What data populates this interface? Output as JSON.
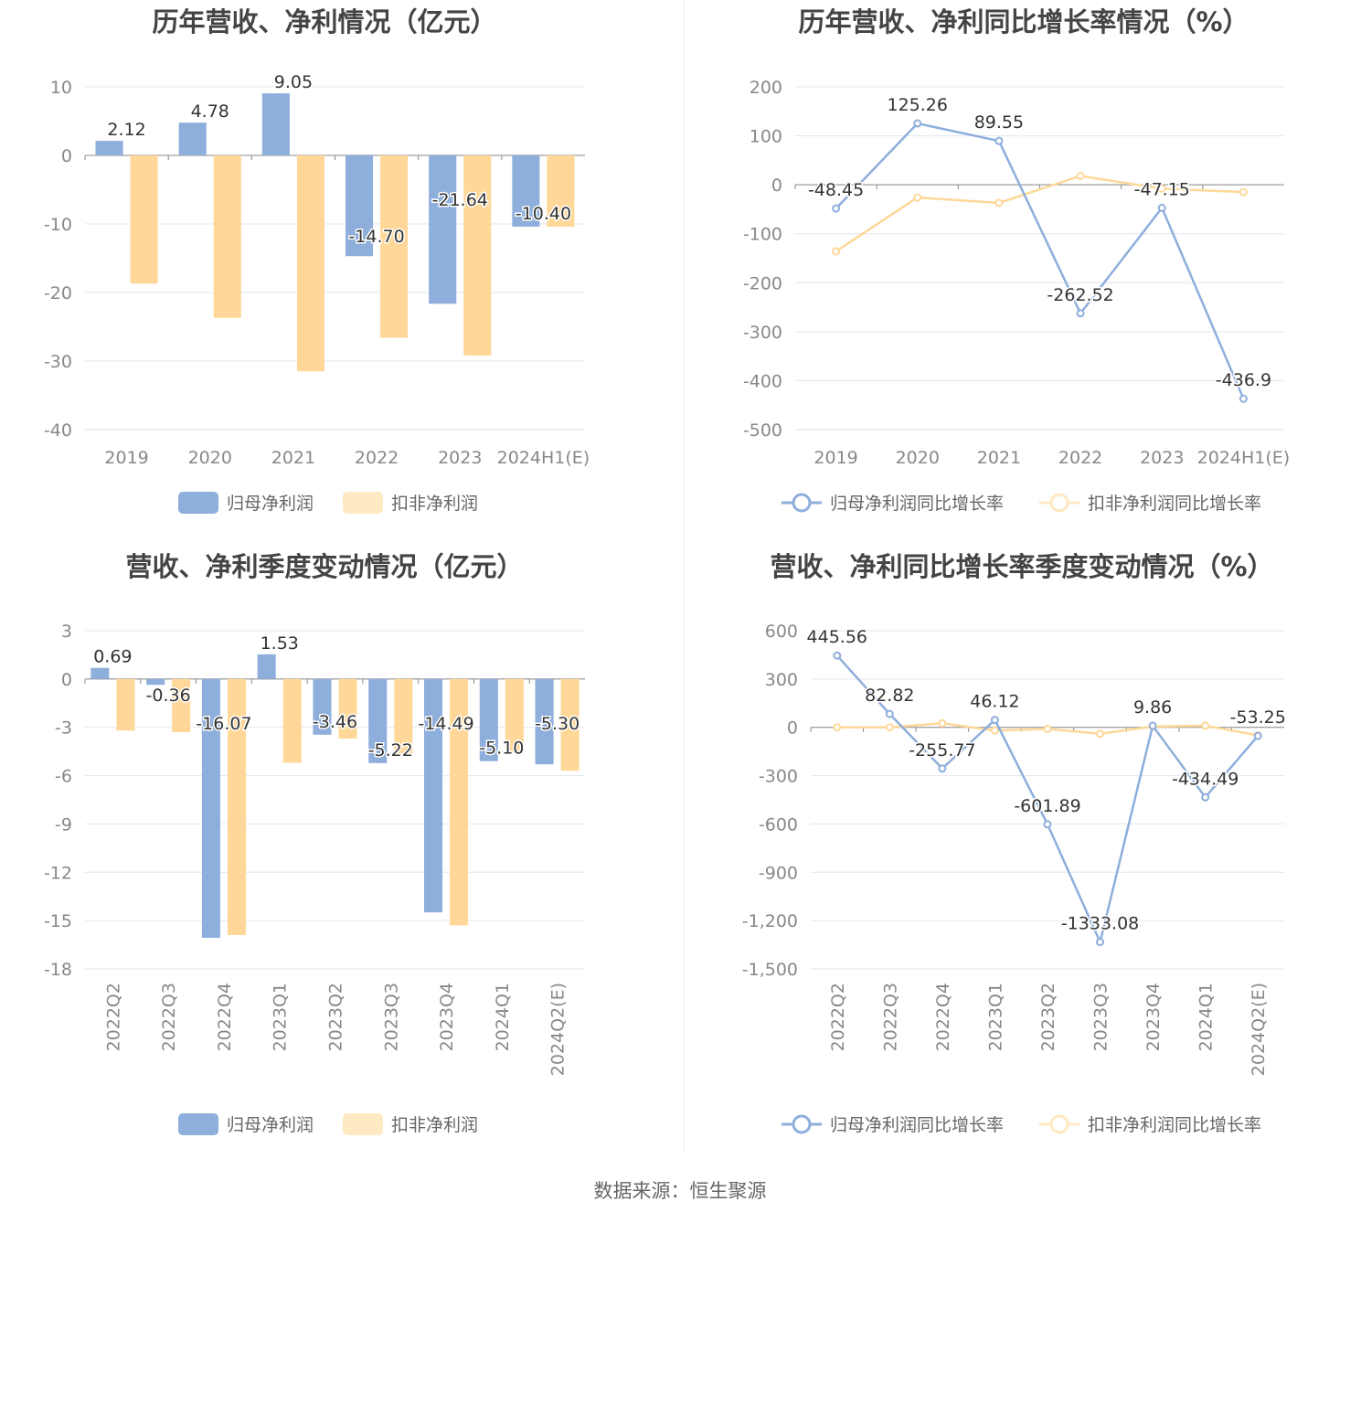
{
  "source": "数据来源：恒生聚源",
  "colors": {
    "blue": "#8EAEDB",
    "yellow": "#FFD899",
    "grid": "#E3E6F0",
    "axis": "#888888"
  },
  "chart_data": [
    {
      "type": "bar",
      "title": "历年营收、净利情况（亿元）",
      "categories": [
        "2019",
        "2020",
        "2021",
        "2022",
        "2023",
        "2024H1(E)"
      ],
      "yticks": [
        "10",
        "0",
        "-10",
        "-20",
        "-30",
        "-40"
      ],
      "ylim": [
        -40,
        10
      ],
      "series": [
        {
          "name": "归母净利润",
          "values": [
            2.12,
            4.78,
            9.05,
            -14.7,
            -21.64,
            -10.4
          ],
          "labels": [
            "2.12",
            "4.78",
            "9.05",
            "-14.70",
            "-21.64",
            "-10.40"
          ]
        },
        {
          "name": "扣非净利润",
          "values": [
            -18.7,
            -23.7,
            -31.5,
            -26.6,
            -29.2,
            -10.4
          ]
        }
      ],
      "legend": "bottom"
    },
    {
      "type": "line",
      "title": "历年营收、净利同比增长率情况（%）",
      "categories": [
        "2019",
        "2020",
        "2021",
        "2022",
        "2023",
        "2024H1(E)"
      ],
      "yticks": [
        "200",
        "100",
        "0",
        "-100",
        "-200",
        "-300",
        "-400",
        "-500"
      ],
      "ylim": [
        -500,
        200
      ],
      "series": [
        {
          "name": "归母净利润同比增长率",
          "values": [
            -48.45,
            125.26,
            89.55,
            -262.52,
            -47.15,
            -436.9
          ],
          "labels": [
            "-48.45",
            "125.26",
            "89.55",
            "-262.52",
            "-47.15",
            "-436.9"
          ]
        },
        {
          "name": "扣非净利润同比增长率",
          "values": [
            -136,
            -26,
            -37,
            18,
            -8,
            -15
          ]
        }
      ],
      "legend": "bottom"
    },
    {
      "type": "bar",
      "title": "营收、净利季度变动情况（亿元）",
      "categories": [
        "2022Q2",
        "2022Q3",
        "2022Q4",
        "2023Q1",
        "2023Q2",
        "2023Q3",
        "2023Q4",
        "2024Q1",
        "2024Q2(E)"
      ],
      "yticks": [
        "3",
        "0",
        "-3",
        "-6",
        "-9",
        "-12",
        "-15",
        "-18"
      ],
      "ylim": [
        -18,
        3
      ],
      "series": [
        {
          "name": "归母净利润",
          "values": [
            0.69,
            -0.36,
            -16.07,
            1.53,
            -3.46,
            -5.22,
            -14.49,
            -5.1,
            -5.3
          ],
          "labels": [
            "0.69",
            "-0.36",
            "-16.07",
            "1.53",
            "-3.46",
            "-5.22",
            "-14.49",
            "-5.10",
            "-5.30"
          ]
        },
        {
          "name": "扣非净利润",
          "values": [
            -3.2,
            -3.3,
            -15.9,
            -5.2,
            -3.7,
            -4.8,
            -15.3,
            -4.6,
            -5.7
          ]
        }
      ],
      "legend": "bottom"
    },
    {
      "type": "line",
      "title": "营收、净利同比增长率季度变动情况（%）",
      "categories": [
        "2022Q2",
        "2022Q3",
        "2022Q4",
        "2023Q1",
        "2023Q2",
        "2023Q3",
        "2023Q4",
        "2024Q1",
        "2024Q2(E)"
      ],
      "yticks": [
        "600",
        "300",
        "0",
        "-300",
        "-600",
        "-900",
        "-1,200",
        "-1,500"
      ],
      "ylim": [
        -1500,
        600
      ],
      "series": [
        {
          "name": "归母净利润同比增长率",
          "values": [
            445.56,
            82.82,
            -255.77,
            46.12,
            -601.89,
            -1333.08,
            9.86,
            -434.49,
            -53.25
          ],
          "labels": [
            "445.56",
            "82.82",
            "-255.77",
            "46.12",
            "-601.89",
            "-1333.08",
            "9.86",
            "-434.49",
            "-53.25"
          ]
        },
        {
          "name": "扣非净利润同比增长率",
          "values": [
            0,
            0,
            25,
            -20,
            -10,
            -40,
            5,
            10,
            -50
          ]
        }
      ],
      "legend": "bottom"
    }
  ]
}
